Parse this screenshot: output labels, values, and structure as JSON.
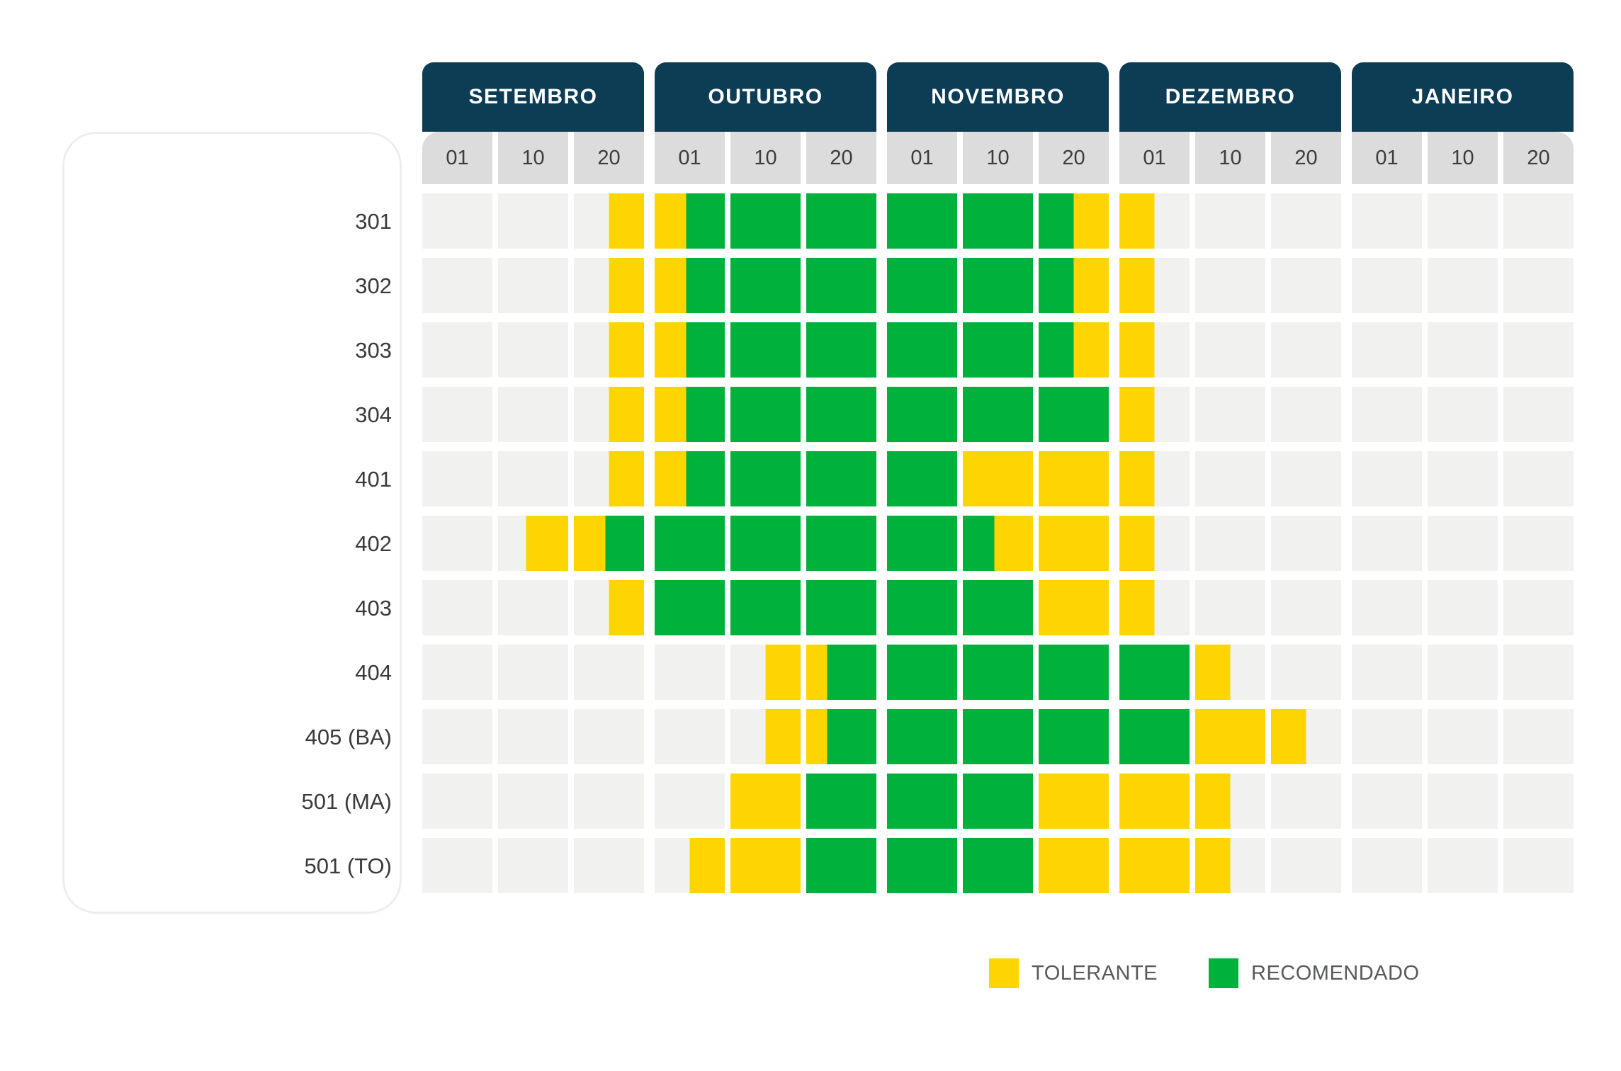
{
  "colors": {
    "tolerant": "#FFD500",
    "recommended": "#00B13C",
    "header_bg": "#0D3C55",
    "subheader_bg": "#DCDCDC",
    "empty_cell": "#F1F2F0",
    "subheader_text": "#3C3C3C",
    "row_label_text": "#3A3A3A",
    "legend_text": "#58595B",
    "panel_border": "#EDEDED"
  },
  "months": [
    {
      "label": "SETEMBRO",
      "ticks": [
        "01",
        "10",
        "20"
      ]
    },
    {
      "label": "OUTUBRO",
      "ticks": [
        "01",
        "10",
        "20"
      ]
    },
    {
      "label": "NOVEMBRO",
      "ticks": [
        "01",
        "10",
        "20"
      ]
    },
    {
      "label": "DEZEMBRO",
      "ticks": [
        "01",
        "10",
        "20"
      ]
    },
    {
      "label": "JANEIRO",
      "ticks": [
        "01",
        "10",
        "20"
      ]
    }
  ],
  "legend": [
    {
      "label": "TOLERANTE",
      "color_key": "tolerant"
    },
    {
      "label": "RECOMENDADO",
      "color_key": "recommended"
    }
  ],
  "chart_data": {
    "type": "heatmap",
    "title": "",
    "x_categories": [
      "SET 01",
      "SET 10",
      "SET 20",
      "OUT 01",
      "OUT 10",
      "OUT 20",
      "NOV 01",
      "NOV 10",
      "NOV 20",
      "DEZ 01",
      "DEZ 10",
      "DEZ 20",
      "JAN 01",
      "JAN 10",
      "JAN 20"
    ],
    "row_categories": [
      "301",
      "302",
      "303",
      "304",
      "401",
      "402",
      "403",
      "404",
      "405 (BA)",
      "501 (MA)",
      "501 (TO)"
    ],
    "legend_entries": [
      "TOLERANTE",
      "RECOMENDADO"
    ],
    "cell_encoding": "e=empty, y=tolerante(yellow), g=recomendado(green); 'a/b:p' = color a from 0 to p%, then color b to 100%",
    "rows": [
      {
        "label": "301",
        "cells": [
          "e",
          "e",
          "e/y:50",
          "y/g:45",
          "g",
          "g",
          "g",
          "g",
          "g/y:50",
          "y/e:50",
          "e",
          "e",
          "e",
          "e",
          "e"
        ]
      },
      {
        "label": "302",
        "cells": [
          "e",
          "e",
          "e/y:50",
          "y/g:45",
          "g",
          "g",
          "g",
          "g",
          "g/y:50",
          "y/e:50",
          "e",
          "e",
          "e",
          "e",
          "e"
        ]
      },
      {
        "label": "303",
        "cells": [
          "e",
          "e",
          "e/y:50",
          "y/g:45",
          "g",
          "g",
          "g",
          "g",
          "g/y:50",
          "y/e:50",
          "e",
          "e",
          "e",
          "e",
          "e"
        ]
      },
      {
        "label": "304",
        "cells": [
          "e",
          "e",
          "e/y:50",
          "y/g:45",
          "g",
          "g",
          "g",
          "g",
          "g",
          "y/e:50",
          "e",
          "e",
          "e",
          "e",
          "e"
        ]
      },
      {
        "label": "401",
        "cells": [
          "e",
          "e",
          "e/y:50",
          "y/g:45",
          "g",
          "g",
          "g",
          "y",
          "y",
          "y/e:50",
          "e",
          "e",
          "e",
          "e",
          "e"
        ]
      },
      {
        "label": "402",
        "cells": [
          "e",
          "e/y:40",
          "y/g:45",
          "g",
          "g",
          "g",
          "g",
          "g/y:45",
          "y",
          "y/e:50",
          "e",
          "e",
          "e",
          "e",
          "e"
        ]
      },
      {
        "label": "403",
        "cells": [
          "e",
          "e",
          "e/y:50",
          "g",
          "g",
          "g",
          "g",
          "g",
          "y",
          "y/e:50",
          "e",
          "e",
          "e",
          "e",
          "e"
        ]
      },
      {
        "label": "404",
        "cells": [
          "e",
          "e",
          "e",
          "e",
          "e/y:50",
          "y/g:30",
          "g",
          "g",
          "g",
          "g",
          "y/e:50",
          "e",
          "e",
          "e",
          "e"
        ]
      },
      {
        "label": "405 (BA)",
        "cells": [
          "e",
          "e",
          "e",
          "e",
          "e/y:50",
          "y/g:30",
          "g",
          "g",
          "g",
          "g",
          "y",
          "y/e:50",
          "e",
          "e",
          "e"
        ]
      },
      {
        "label": "501 (MA)",
        "cells": [
          "e",
          "e",
          "e",
          "e",
          "y",
          "g",
          "g",
          "g",
          "y",
          "y",
          "y/e:50",
          "e",
          "e",
          "e",
          "e"
        ]
      },
      {
        "label": "501 (TO)",
        "cells": [
          "e",
          "e",
          "e",
          "e/y:50",
          "y",
          "g",
          "g",
          "g",
          "y",
          "y",
          "y/e:50",
          "e",
          "e",
          "e",
          "e"
        ]
      }
    ],
    "periods_approx": [
      {
        "label": "301",
        "tolerante": [
          "25/09–05/10",
          "25/11–05/12"
        ],
        "recomendado": [
          "05/10–25/11"
        ]
      },
      {
        "label": "302",
        "tolerante": [
          "25/09–05/10",
          "25/11–05/12"
        ],
        "recomendado": [
          "05/10–25/11"
        ]
      },
      {
        "label": "303",
        "tolerante": [
          "25/09–05/10",
          "25/11–05/12"
        ],
        "recomendado": [
          "05/10–25/11"
        ]
      },
      {
        "label": "304",
        "tolerante": [
          "25/09–05/10",
          "01/12–05/12"
        ],
        "recomendado": [
          "05/10–01/12"
        ]
      },
      {
        "label": "401",
        "tolerante": [
          "25/09–05/10",
          "10/11–05/12"
        ],
        "recomendado": [
          "05/10–10/11"
        ]
      },
      {
        "label": "402",
        "tolerante": [
          "14/09–25/09",
          "15/11–05/12"
        ],
        "recomendado": [
          "25/09–15/11"
        ]
      },
      {
        "label": "403",
        "tolerante": [
          "25/09–01/10",
          "20/11–05/12"
        ],
        "recomendado": [
          "01/10–20/11"
        ]
      },
      {
        "label": "404",
        "tolerante": [
          "15/10–23/10",
          "10/12–15/12"
        ],
        "recomendado": [
          "23/10–10/12"
        ]
      },
      {
        "label": "405 (BA)",
        "tolerante": [
          "15/10–23/10",
          "10/12–25/12"
        ],
        "recomendado": [
          "23/10–10/12"
        ]
      },
      {
        "label": "501 (MA)",
        "tolerante": [
          "10/10–20/10",
          "20/11–15/12"
        ],
        "recomendado": [
          "20/10–20/11"
        ]
      },
      {
        "label": "501 (TO)",
        "tolerante": [
          "05/10–20/10",
          "20/11–15/12"
        ],
        "recomendado": [
          "20/10–20/11"
        ]
      }
    ]
  }
}
